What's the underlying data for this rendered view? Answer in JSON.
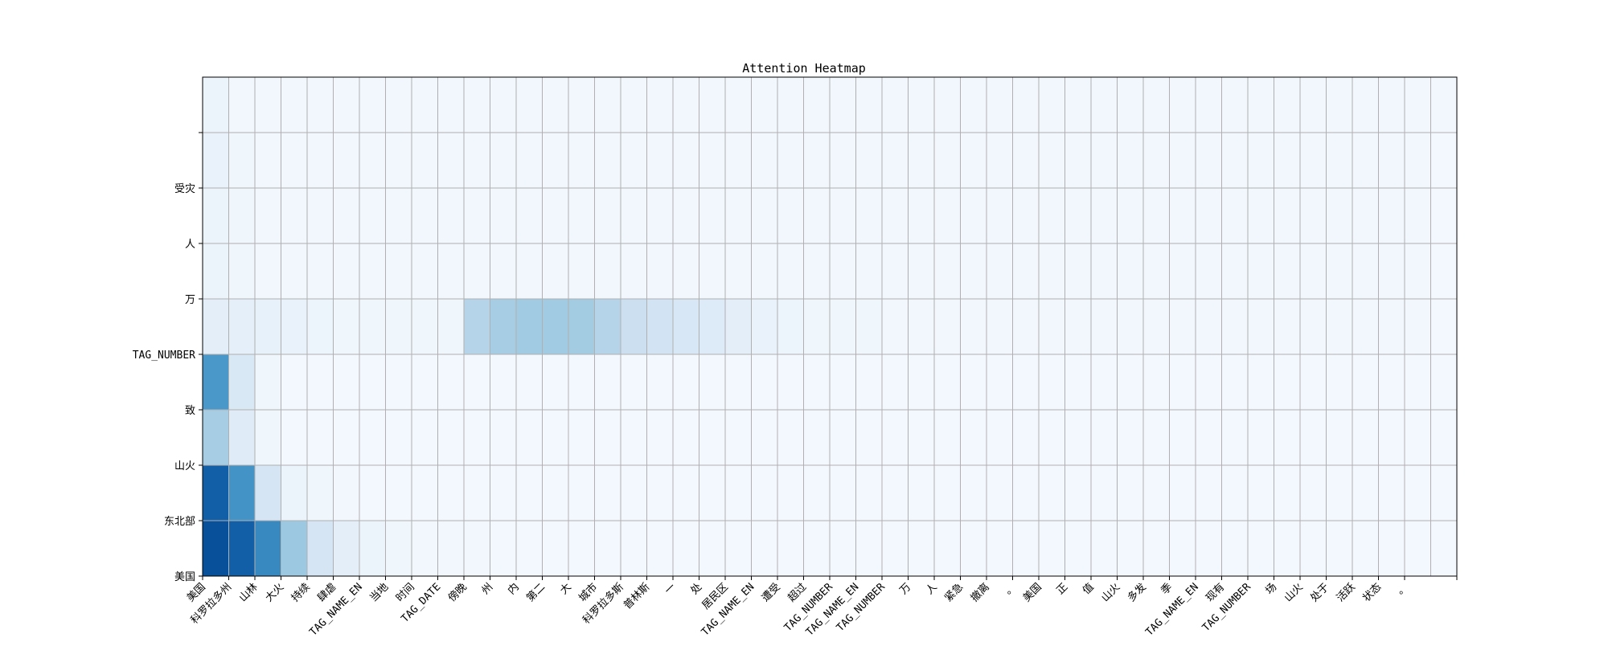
{
  "chart_data": {
    "type": "heatmap",
    "title": "Attention Heatmap",
    "xlabel": "",
    "ylabel": "",
    "colormap": "Blues",
    "value_range": [
      0,
      1
    ],
    "grid": true,
    "grid_color": "#b0b0b0",
    "x_tokens": [
      "美国",
      "科罗拉多州",
      "山林",
      "大火",
      "持续",
      "肆虐",
      "TAG_NAME_EN",
      "当地",
      "时间",
      "TAG_DATE",
      "傍晚",
      "州",
      "内",
      "第二",
      "大",
      "城市",
      "科罗拉多斯",
      "普林斯",
      "一",
      "处",
      "居民区",
      "TAG_NAME_EN",
      "遭受",
      "超过",
      "TAG_NUMBER",
      "TAG_NAME_EN",
      "TAG_NUMBER",
      "万",
      "人",
      "紧急",
      "撤离",
      "。",
      "美国",
      "正",
      "值",
      "山火",
      "多发",
      "季",
      "TAG_NAME_EN",
      "现有",
      "TAG_NUMBER",
      "场",
      "山火",
      "处于",
      "活跃",
      "状态",
      "。"
    ],
    "y_tokens": [
      "美国",
      "东北部",
      "山火",
      "致",
      "TAG_NUMBER",
      "万",
      "人",
      "受灾"
    ],
    "y_ticks_shown": [
      "美国",
      "东北部",
      "山火",
      "致",
      "TAG_NUMBER",
      "万",
      "人",
      "受灾",
      ""
    ],
    "rows": [
      {
        "token": "美国",
        "values": [
          0.88,
          0.82,
          0.66,
          0.38,
          0.17,
          0.1,
          0.06,
          0.04,
          0.03,
          0.03,
          0.03,
          0.02,
          0.02,
          0.02,
          0.02,
          0.02,
          0.02,
          0.02,
          0.02,
          0.02,
          0.02,
          0.02,
          0.02,
          0.02,
          0.02,
          0.02,
          0.02,
          0.02,
          0.02,
          0.02,
          0.02,
          0.02,
          0.02,
          0.02,
          0.02,
          0.02,
          0.02,
          0.02,
          0.02,
          0.02,
          0.02,
          0.02,
          0.02,
          0.02,
          0.02,
          0.02,
          0.02
        ]
      },
      {
        "token": "东北部",
        "values": [
          0.82,
          0.62,
          0.17,
          0.06,
          0.04,
          0.03,
          0.02,
          0.02,
          0.02,
          0.02,
          0.02,
          0.02,
          0.02,
          0.02,
          0.02,
          0.02,
          0.02,
          0.02,
          0.02,
          0.02,
          0.02,
          0.02,
          0.02,
          0.02,
          0.02,
          0.02,
          0.02,
          0.02,
          0.02,
          0.02,
          0.02,
          0.02,
          0.02,
          0.02,
          0.02,
          0.02,
          0.02,
          0.02,
          0.02,
          0.02,
          0.02,
          0.02,
          0.02,
          0.02,
          0.02,
          0.02,
          0.02
        ]
      },
      {
        "token": "山火",
        "values": [
          0.35,
          0.12,
          0.04,
          0.02,
          0.02,
          0.02,
          0.02,
          0.02,
          0.02,
          0.02,
          0.02,
          0.02,
          0.02,
          0.02,
          0.02,
          0.02,
          0.02,
          0.02,
          0.02,
          0.02,
          0.02,
          0.02,
          0.02,
          0.02,
          0.02,
          0.02,
          0.02,
          0.02,
          0.02,
          0.02,
          0.02,
          0.02,
          0.02,
          0.02,
          0.02,
          0.02,
          0.02,
          0.02,
          0.02,
          0.02,
          0.02,
          0.02,
          0.02,
          0.02,
          0.02,
          0.02,
          0.02
        ]
      },
      {
        "token": "致",
        "values": [
          0.6,
          0.15,
          0.04,
          0.02,
          0.02,
          0.02,
          0.02,
          0.02,
          0.02,
          0.02,
          0.02,
          0.02,
          0.02,
          0.02,
          0.02,
          0.02,
          0.02,
          0.02,
          0.02,
          0.02,
          0.02,
          0.02,
          0.02,
          0.02,
          0.02,
          0.02,
          0.02,
          0.02,
          0.02,
          0.02,
          0.02,
          0.02,
          0.02,
          0.02,
          0.02,
          0.02,
          0.02,
          0.02,
          0.02,
          0.02,
          0.02,
          0.02,
          0.02,
          0.02,
          0.02,
          0.02,
          0.02
        ]
      },
      {
        "token": "TAG_NUMBER",
        "values": [
          0.1,
          0.09,
          0.08,
          0.07,
          0.05,
          0.04,
          0.04,
          0.04,
          0.04,
          0.04,
          0.3,
          0.35,
          0.37,
          0.37,
          0.36,
          0.3,
          0.22,
          0.19,
          0.16,
          0.13,
          0.1,
          0.07,
          0.05,
          0.04,
          0.04,
          0.04,
          0.03,
          0.03,
          0.03,
          0.03,
          0.03,
          0.03,
          0.03,
          0.03,
          0.03,
          0.03,
          0.03,
          0.03,
          0.03,
          0.03,
          0.03,
          0.03,
          0.03,
          0.03,
          0.03,
          0.03,
          0.03
        ]
      },
      {
        "token": "万",
        "values": [
          0.06,
          0.04,
          0.03,
          0.03,
          0.03,
          0.03,
          0.03,
          0.03,
          0.03,
          0.03,
          0.03,
          0.03,
          0.03,
          0.03,
          0.03,
          0.03,
          0.03,
          0.03,
          0.03,
          0.03,
          0.03,
          0.03,
          0.03,
          0.03,
          0.03,
          0.03,
          0.03,
          0.03,
          0.03,
          0.03,
          0.03,
          0.03,
          0.03,
          0.03,
          0.03,
          0.03,
          0.03,
          0.03,
          0.03,
          0.03,
          0.03,
          0.03,
          0.03,
          0.03,
          0.03,
          0.03,
          0.03
        ]
      },
      {
        "token": "人",
        "values": [
          0.06,
          0.04,
          0.03,
          0.03,
          0.03,
          0.03,
          0.03,
          0.03,
          0.03,
          0.03,
          0.03,
          0.03,
          0.03,
          0.03,
          0.03,
          0.03,
          0.03,
          0.03,
          0.03,
          0.03,
          0.03,
          0.03,
          0.03,
          0.03,
          0.03,
          0.03,
          0.03,
          0.03,
          0.03,
          0.03,
          0.03,
          0.03,
          0.03,
          0.03,
          0.03,
          0.03,
          0.03,
          0.03,
          0.03,
          0.03,
          0.03,
          0.03,
          0.03,
          0.03,
          0.03,
          0.03,
          0.03
        ]
      },
      {
        "token": "受灾",
        "values": [
          0.07,
          0.04,
          0.03,
          0.03,
          0.03,
          0.03,
          0.03,
          0.03,
          0.03,
          0.03,
          0.03,
          0.03,
          0.03,
          0.03,
          0.03,
          0.03,
          0.03,
          0.03,
          0.03,
          0.03,
          0.03,
          0.03,
          0.03,
          0.03,
          0.03,
          0.03,
          0.03,
          0.03,
          0.03,
          0.03,
          0.03,
          0.03,
          0.03,
          0.03,
          0.03,
          0.03,
          0.03,
          0.03,
          0.03,
          0.03,
          0.03,
          0.03,
          0.03,
          0.03,
          0.03,
          0.03,
          0.03
        ]
      }
    ]
  }
}
